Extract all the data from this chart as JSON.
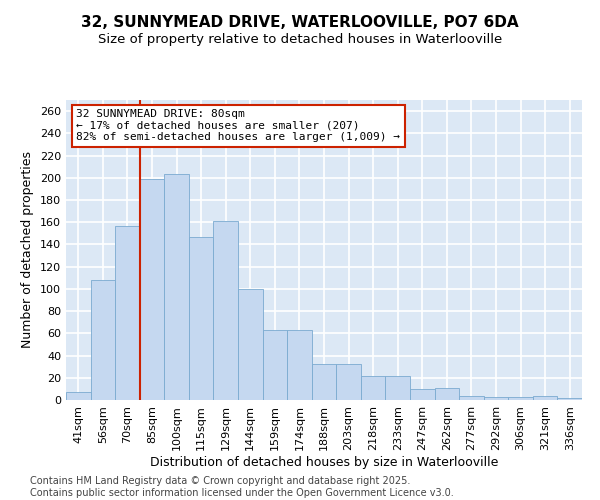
{
  "title": "32, SUNNYMEAD DRIVE, WATERLOOVILLE, PO7 6DA",
  "subtitle": "Size of property relative to detached houses in Waterlooville",
  "xlabel": "Distribution of detached houses by size in Waterlooville",
  "ylabel": "Number of detached properties",
  "categories": [
    "41sqm",
    "56sqm",
    "70sqm",
    "85sqm",
    "100sqm",
    "115sqm",
    "129sqm",
    "144sqm",
    "159sqm",
    "174sqm",
    "188sqm",
    "203sqm",
    "218sqm",
    "233sqm",
    "247sqm",
    "262sqm",
    "277sqm",
    "292sqm",
    "306sqm",
    "321sqm",
    "336sqm"
  ],
  "values": [
    7,
    108,
    157,
    199,
    203,
    147,
    161,
    100,
    63,
    63,
    32,
    32,
    22,
    22,
    10,
    11,
    4,
    3,
    3,
    4,
    2
  ],
  "bar_color": "#c5d8f0",
  "bar_edge_color": "#7aaad0",
  "vline_x_index": 3,
  "vline_color": "#cc2200",
  "annotation_text": "32 SUNNYMEAD DRIVE: 80sqm\n← 17% of detached houses are smaller (207)\n82% of semi-detached houses are larger (1,009) →",
  "annotation_box_color": "#ffffff",
  "annotation_box_edge": "#cc2200",
  "ylim": [
    0,
    270
  ],
  "yticks": [
    0,
    20,
    40,
    60,
    80,
    100,
    120,
    140,
    160,
    180,
    200,
    220,
    240,
    260
  ],
  "plot_bg_color": "#dce8f5",
  "fig_bg_color": "#ffffff",
  "grid_color": "#ffffff",
  "footer_text": "Contains HM Land Registry data © Crown copyright and database right 2025.\nContains public sector information licensed under the Open Government Licence v3.0.",
  "title_fontsize": 11,
  "subtitle_fontsize": 9.5,
  "axis_label_fontsize": 9,
  "tick_fontsize": 8,
  "annotation_fontsize": 8,
  "footer_fontsize": 7
}
